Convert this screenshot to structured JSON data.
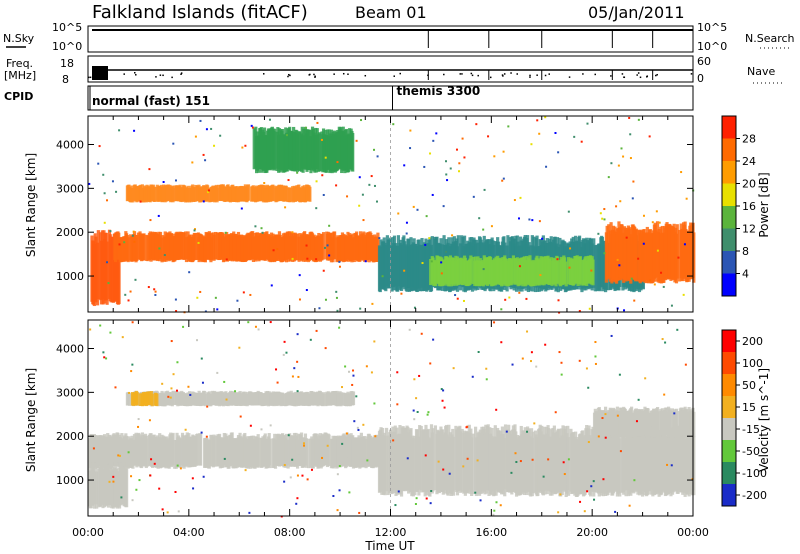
{
  "header": {
    "station": "Falkland Islands (fitACF)",
    "beam": "Beam 01",
    "date": "05/Jan/2011"
  },
  "strip_panels": {
    "nsky_label": "N.Sky",
    "nsky_ticks": [
      "10^5",
      "10^0"
    ],
    "nsearch_label": "N.Search",
    "nsearch_ticks": [
      "10^5",
      "10^0"
    ],
    "freq_label_line1": "Freq.",
    "freq_label_line2": "[MHz]",
    "freq_ticks": [
      "18",
      "8"
    ],
    "nave_label": "Nave",
    "nave_ticks": [
      "60",
      "0"
    ],
    "cpid_label": "CPID",
    "cpid_modes": [
      {
        "text": "normal (fast) 151",
        "start_hour": 0
      },
      {
        "text": "themis 3300",
        "start_hour": 12
      }
    ]
  },
  "chart_data": [
    {
      "type": "heatmap",
      "panel": "power",
      "ylabel": "Slant Range [km]",
      "ylim": [
        180,
        4650
      ],
      "yticks": [
        1000,
        2000,
        3000,
        4000
      ],
      "xlim": [
        0,
        24
      ],
      "colorbar": {
        "label": "Power [dB]",
        "tick_labels": [
          "4",
          "8",
          "12",
          "16",
          "20",
          "24",
          "28"
        ],
        "colors": [
          "#0000ff",
          "#2b55b4",
          "#3f8e6c",
          "#5bb43c",
          "#e8e000",
          "#ff9c00",
          "#ff6a00",
          "#ff2000"
        ]
      },
      "bands": [
        {
          "t0": 0.0,
          "t1": 1.2,
          "r0": 400,
          "r1": 1900,
          "color": "#ff5a10"
        },
        {
          "t0": 1.0,
          "t1": 11.5,
          "r0": 1350,
          "r1": 1950,
          "color": "#ff6a10"
        },
        {
          "t0": 1.5,
          "t1": 8.8,
          "r0": 2700,
          "r1": 3050,
          "color": "#ff8a20"
        },
        {
          "t0": 11.5,
          "t1": 22.0,
          "r0": 700,
          "r1": 1800,
          "color": "#2c8a88"
        },
        {
          "t0": 13.5,
          "t1": 20.0,
          "r0": 800,
          "r1": 1400,
          "color": "#7bd040"
        },
        {
          "t0": 20.5,
          "t1": 24.0,
          "r0": 900,
          "r1": 2100,
          "color": "#ff6a10"
        },
        {
          "t0": 6.5,
          "t1": 10.5,
          "r0": 3400,
          "r1": 4300,
          "color": "#2fa050"
        }
      ]
    },
    {
      "type": "heatmap",
      "panel": "velocity",
      "ylabel": "Slant Range [km]",
      "xlabel": "Time UT",
      "ylim": [
        180,
        4650
      ],
      "yticks": [
        1000,
        2000,
        3000,
        4000
      ],
      "xlim": [
        0,
        24
      ],
      "xtick_labels": [
        "00:00",
        "04:00",
        "08:00",
        "12:00",
        "16:00",
        "20:00",
        "00:00"
      ],
      "xtick_hours": [
        0,
        4,
        8,
        12,
        16,
        20,
        24
      ],
      "colorbar": {
        "label": "Velocity [m s^-1]",
        "tick_labels": [
          "200",
          "100",
          "50",
          "15",
          "-15",
          "-50",
          "-100",
          "-200"
        ],
        "colors": [
          "#1a2cc8",
          "#2a8a60",
          "#62c83a",
          "#c8c8c0",
          "#f2b020",
          "#ff8a00",
          "#ff4a00",
          "#ff0000"
        ]
      },
      "bands": [
        {
          "t0": 0.0,
          "t1": 11.5,
          "r0": 1300,
          "r1": 2000,
          "color": "#c8c8c0"
        },
        {
          "t0": 1.5,
          "t1": 10.5,
          "r0": 2700,
          "r1": 3000,
          "color": "#c8c8c0"
        },
        {
          "t0": 0.0,
          "t1": 1.5,
          "r0": 400,
          "r1": 1300,
          "color": "#c8c8c0"
        },
        {
          "t0": 11.5,
          "t1": 24.0,
          "r0": 700,
          "r1": 2100,
          "color": "#c8c8c0"
        },
        {
          "t0": 1.7,
          "t1": 2.7,
          "r0": 2700,
          "r1": 3000,
          "color": "#f2b020"
        },
        {
          "t0": 20.0,
          "t1": 24.0,
          "r0": 2000,
          "r1": 2600,
          "color": "#c8c8c0"
        }
      ]
    }
  ]
}
